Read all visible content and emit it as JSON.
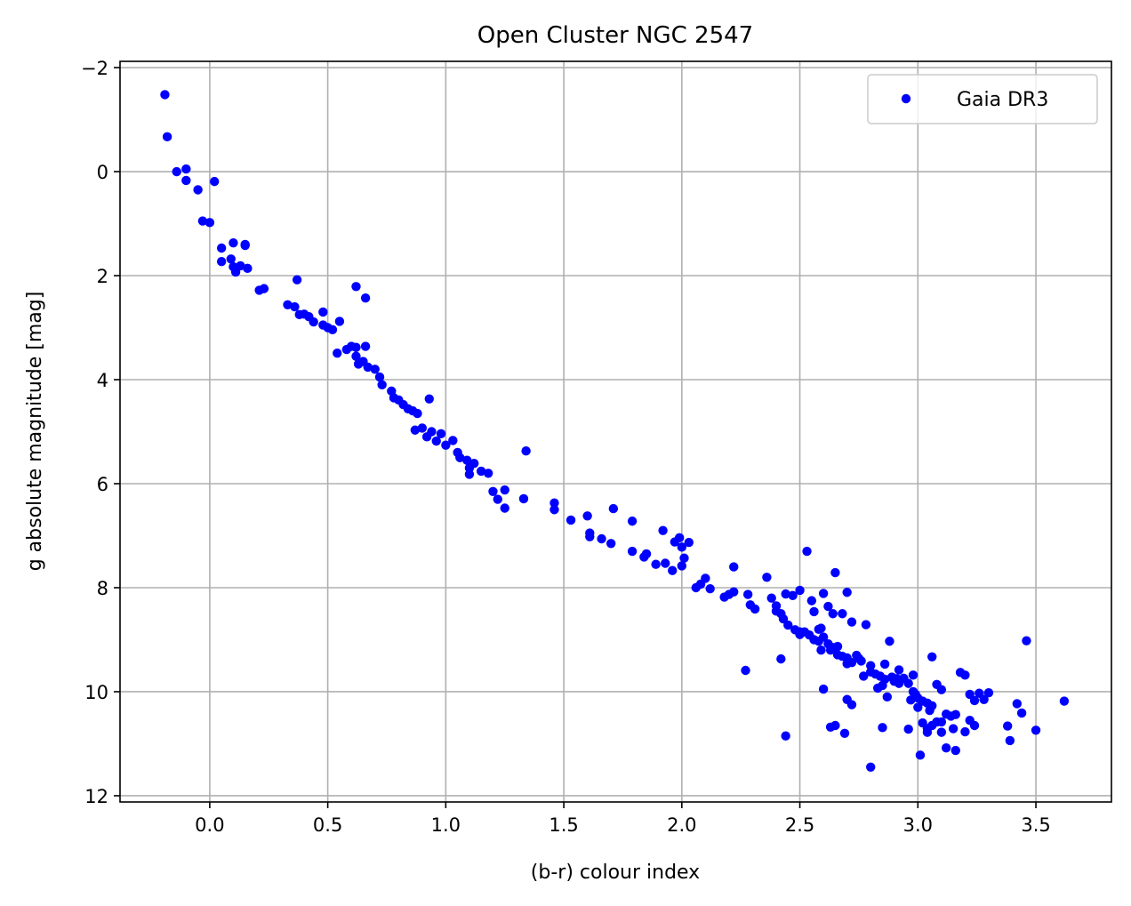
{
  "chart_data": {
    "type": "scatter",
    "title": "Open Cluster NGC 2547",
    "xlabel": "(b-r) colour index",
    "ylabel": "g absolute magnitude [mag]",
    "xlim": [
      -0.38,
      3.82
    ],
    "ylim": [
      12.12,
      -2.12
    ],
    "y_inverted": true,
    "x_ticks": [
      0.0,
      0.5,
      1.0,
      1.5,
      2.0,
      2.5,
      3.0,
      3.5
    ],
    "x_tick_labels": [
      "0.0",
      "0.5",
      "1.0",
      "1.5",
      "2.0",
      "2.5",
      "3.0",
      "3.5"
    ],
    "y_ticks": [
      -2,
      0,
      2,
      4,
      6,
      8,
      10,
      12
    ],
    "y_tick_labels": [
      "−2",
      "0",
      "2",
      "4",
      "6",
      "8",
      "10",
      "12"
    ],
    "grid": true,
    "legend_position": "top-right",
    "marker_color": "#0000ff",
    "series": [
      {
        "name": "Gaia DR3",
        "points": [
          [
            -0.19,
            -1.48
          ],
          [
            -0.18,
            -0.67
          ],
          [
            -0.14,
            0.0
          ],
          [
            -0.1,
            -0.05
          ],
          [
            -0.1,
            0.17
          ],
          [
            -0.05,
            0.35
          ],
          [
            0.02,
            0.19
          ],
          [
            -0.03,
            0.95
          ],
          [
            0.0,
            0.98
          ],
          [
            0.05,
            1.47
          ],
          [
            0.1,
            1.37
          ],
          [
            0.15,
            1.42
          ],
          [
            0.05,
            1.73
          ],
          [
            0.09,
            1.68
          ],
          [
            0.1,
            1.83
          ],
          [
            0.11,
            1.93
          ],
          [
            0.13,
            1.81
          ],
          [
            0.16,
            1.86
          ],
          [
            0.15,
            1.4
          ],
          [
            0.21,
            2.28
          ],
          [
            0.23,
            2.25
          ],
          [
            0.37,
            2.08
          ],
          [
            0.62,
            2.21
          ],
          [
            0.66,
            2.43
          ],
          [
            0.33,
            2.56
          ],
          [
            0.36,
            2.6
          ],
          [
            0.38,
            2.75
          ],
          [
            0.42,
            2.79
          ],
          [
            0.4,
            2.74
          ],
          [
            0.44,
            2.89
          ],
          [
            0.48,
            2.7
          ],
          [
            0.48,
            2.95
          ],
          [
            0.5,
            3.0
          ],
          [
            0.52,
            3.04
          ],
          [
            0.55,
            2.88
          ],
          [
            0.58,
            3.42
          ],
          [
            0.6,
            3.36
          ],
          [
            0.62,
            3.38
          ],
          [
            0.66,
            3.36
          ],
          [
            0.54,
            3.49
          ],
          [
            0.62,
            3.55
          ],
          [
            0.65,
            3.65
          ],
          [
            0.63,
            3.7
          ],
          [
            0.67,
            3.76
          ],
          [
            0.7,
            3.8
          ],
          [
            0.72,
            3.95
          ],
          [
            0.73,
            4.1
          ],
          [
            0.77,
            4.22
          ],
          [
            0.78,
            4.35
          ],
          [
            0.8,
            4.39
          ],
          [
            0.82,
            4.48
          ],
          [
            0.84,
            4.56
          ],
          [
            0.86,
            4.6
          ],
          [
            0.88,
            4.65
          ],
          [
            0.87,
            4.97
          ],
          [
            0.9,
            4.93
          ],
          [
            0.92,
            5.1
          ],
          [
            0.94,
            5.0
          ],
          [
            0.96,
            5.18
          ],
          [
            0.98,
            5.04
          ],
          [
            1.0,
            5.26
          ],
          [
            1.03,
            5.17
          ],
          [
            0.93,
            4.37
          ],
          [
            1.05,
            5.4
          ],
          [
            1.06,
            5.5
          ],
          [
            1.09,
            5.55
          ],
          [
            1.1,
            5.7
          ],
          [
            1.12,
            5.61
          ],
          [
            1.15,
            5.76
          ],
          [
            1.18,
            5.8
          ],
          [
            1.1,
            5.82
          ],
          [
            1.34,
            5.37
          ],
          [
            1.2,
            6.15
          ],
          [
            1.25,
            6.12
          ],
          [
            1.22,
            6.3
          ],
          [
            1.33,
            6.29
          ],
          [
            1.25,
            6.47
          ],
          [
            1.46,
            6.37
          ],
          [
            1.46,
            6.5
          ],
          [
            1.53,
            6.7
          ],
          [
            1.6,
            6.62
          ],
          [
            1.61,
            6.95
          ],
          [
            1.66,
            7.06
          ],
          [
            1.61,
            7.02
          ],
          [
            1.7,
            7.15
          ],
          [
            1.71,
            6.48
          ],
          [
            1.79,
            6.72
          ],
          [
            1.79,
            7.3
          ],
          [
            1.84,
            7.41
          ],
          [
            1.85,
            7.35
          ],
          [
            1.89,
            7.55
          ],
          [
            1.92,
            6.9
          ],
          [
            1.93,
            7.53
          ],
          [
            1.96,
            7.67
          ],
          [
            1.97,
            7.12
          ],
          [
            1.99,
            7.04
          ],
          [
            2.0,
            7.22
          ],
          [
            2.01,
            7.43
          ],
          [
            2.0,
            7.58
          ],
          [
            2.03,
            7.13
          ],
          [
            2.06,
            8.0
          ],
          [
            2.08,
            7.93
          ],
          [
            2.1,
            7.82
          ],
          [
            2.12,
            8.02
          ],
          [
            2.18,
            8.18
          ],
          [
            2.2,
            8.13
          ],
          [
            2.22,
            7.6
          ],
          [
            2.22,
            8.08
          ],
          [
            2.28,
            8.13
          ],
          [
            2.29,
            8.33
          ],
          [
            2.31,
            8.41
          ],
          [
            2.27,
            9.59
          ],
          [
            2.36,
            7.8
          ],
          [
            2.38,
            8.2
          ],
          [
            2.4,
            8.45
          ],
          [
            2.42,
            8.5
          ],
          [
            2.43,
            8.6
          ],
          [
            2.44,
            8.12
          ],
          [
            2.47,
            8.15
          ],
          [
            2.5,
            8.05
          ],
          [
            2.53,
            7.3
          ],
          [
            2.55,
            8.25
          ],
          [
            2.56,
            8.46
          ],
          [
            2.59,
            8.78
          ],
          [
            2.6,
            8.11
          ],
          [
            2.62,
            8.36
          ],
          [
            2.64,
            8.5
          ],
          [
            2.65,
            7.71
          ],
          [
            2.68,
            8.5
          ],
          [
            2.7,
            8.09
          ],
          [
            2.72,
            8.66
          ],
          [
            2.48,
            8.81
          ],
          [
            2.5,
            8.85
          ],
          [
            2.52,
            8.85
          ],
          [
            2.54,
            8.91
          ],
          [
            2.56,
            9.0
          ],
          [
            2.58,
            9.03
          ],
          [
            2.6,
            8.95
          ],
          [
            2.62,
            9.08
          ],
          [
            2.64,
            9.15
          ],
          [
            2.66,
            9.13
          ],
          [
            2.7,
            9.35
          ],
          [
            2.72,
            9.44
          ],
          [
            2.74,
            9.3
          ],
          [
            2.76,
            9.41
          ],
          [
            2.78,
            8.71
          ],
          [
            2.8,
            9.62
          ],
          [
            2.82,
            9.66
          ],
          [
            2.84,
            9.7
          ],
          [
            2.86,
            9.76
          ],
          [
            2.88,
            9.03
          ],
          [
            2.89,
            9.72
          ],
          [
            2.9,
            9.8
          ],
          [
            2.92,
            9.84
          ],
          [
            2.94,
            9.74
          ],
          [
            2.96,
            9.84
          ],
          [
            2.98,
            10.0
          ],
          [
            2.99,
            10.05
          ],
          [
            3.0,
            10.12
          ],
          [
            3.02,
            10.18
          ],
          [
            3.04,
            10.22
          ],
          [
            3.06,
            10.27
          ],
          [
            3.06,
            9.33
          ],
          [
            3.08,
            9.86
          ],
          [
            3.1,
            9.96
          ],
          [
            3.12,
            10.43
          ],
          [
            3.14,
            10.47
          ],
          [
            3.16,
            10.44
          ],
          [
            3.18,
            9.63
          ],
          [
            3.2,
            9.68
          ],
          [
            3.22,
            10.05
          ],
          [
            3.24,
            10.17
          ],
          [
            3.26,
            10.03
          ],
          [
            3.28,
            10.15
          ],
          [
            3.3,
            10.02
          ],
          [
            3.02,
            10.6
          ],
          [
            3.04,
            10.71
          ],
          [
            3.06,
            10.65
          ],
          [
            3.08,
            10.58
          ],
          [
            3.1,
            10.78
          ],
          [
            3.12,
            11.08
          ],
          [
            3.16,
            11.13
          ],
          [
            3.2,
            10.77
          ],
          [
            3.24,
            10.65
          ],
          [
            3.38,
            10.66
          ],
          [
            3.42,
            10.23
          ],
          [
            3.44,
            10.41
          ],
          [
            3.46,
            9.02
          ],
          [
            3.5,
            10.74
          ],
          [
            3.62,
            10.18
          ],
          [
            3.39,
            10.94
          ],
          [
            2.44,
            10.85
          ],
          [
            2.6,
            9.95
          ],
          [
            2.63,
            10.68
          ],
          [
            2.65,
            10.65
          ],
          [
            2.69,
            10.8
          ],
          [
            2.7,
            10.15
          ],
          [
            2.72,
            10.25
          ],
          [
            2.8,
            11.45
          ],
          [
            2.85,
            10.69
          ],
          [
            2.87,
            10.1
          ],
          [
            2.96,
            10.72
          ],
          [
            3.01,
            11.22
          ],
          [
            3.04,
            10.78
          ],
          [
            2.42,
            9.37
          ],
          [
            2.59,
            9.2
          ],
          [
            2.63,
            9.2
          ],
          [
            2.66,
            9.29
          ],
          [
            2.7,
            9.46
          ],
          [
            2.75,
            9.36
          ],
          [
            2.8,
            9.5
          ],
          [
            2.83,
            9.93
          ],
          [
            2.86,
            9.47
          ],
          [
            2.92,
            9.58
          ],
          [
            2.98,
            9.68
          ],
          [
            3.05,
            10.36
          ],
          [
            3.1,
            10.58
          ],
          [
            3.15,
            10.71
          ],
          [
            3.22,
            10.55
          ],
          [
            3.0,
            10.3
          ],
          [
            2.97,
            10.16
          ],
          [
            2.91,
            9.75
          ],
          [
            2.85,
            9.88
          ],
          [
            2.77,
            9.7
          ],
          [
            2.68,
            9.32
          ],
          [
            2.58,
            8.8
          ],
          [
            2.5,
            8.9
          ],
          [
            2.45,
            8.72
          ],
          [
            2.4,
            8.35
          ]
        ]
      }
    ]
  }
}
